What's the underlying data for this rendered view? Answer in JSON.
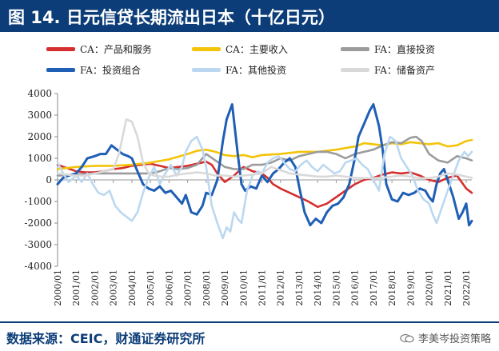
{
  "title": "图 14. 日元信贷长期流出日本（十亿日元）",
  "source": "数据来源：CEIC，财通证券研究所",
  "watermark": "李美岑投资策略",
  "chart_data": {
    "type": "line",
    "ylim": [
      -4000,
      4000
    ],
    "yticks": [
      "4000",
      "3000",
      "2000",
      "1000",
      "0",
      "-1000",
      "-2000",
      "-3000",
      "-4000"
    ],
    "categories": [
      "2000/01",
      "2001/01",
      "2002/01",
      "2003/01",
      "2004/01",
      "2005/01",
      "2006/01",
      "2007/01",
      "2008/01",
      "2009/01",
      "2010/01",
      "2011/01",
      "2012/01",
      "2013/01",
      "2014/01",
      "2015/01",
      "2016/01",
      "2017/01",
      "2018/01",
      "2019/01",
      "2020/01",
      "2021/01",
      "2022/01"
    ],
    "x_range": [
      2000.0,
      2022.3
    ],
    "series": [
      {
        "name": "CA：产品和服务",
        "color": "#d62f2f",
        "width": 2.6,
        "x": [
          2000.0,
          2000.5,
          2001.0,
          2001.5,
          2002.0,
          2002.5,
          2003.0,
          2003.5,
          2004.0,
          2004.5,
          2005.0,
          2005.5,
          2006.0,
          2006.5,
          2007.0,
          2007.5,
          2008.0,
          2008.3,
          2008.6,
          2009.0,
          2009.5,
          2010.0,
          2010.5,
          2011.0,
          2011.3,
          2011.6,
          2012.0,
          2012.5,
          2013.0,
          2013.5,
          2014.0,
          2014.5,
          2015.0,
          2015.5,
          2016.0,
          2016.5,
          2017.0,
          2017.5,
          2018.0,
          2018.5,
          2019.0,
          2019.5,
          2020.0,
          2020.5,
          2021.0,
          2021.5,
          2022.0,
          2022.3
        ],
        "values": [
          700,
          550,
          400,
          350,
          350,
          400,
          500,
          550,
          650,
          700,
          750,
          650,
          550,
          600,
          650,
          750,
          850,
          700,
          300,
          -100,
          200,
          600,
          400,
          300,
          100,
          -200,
          -400,
          -600,
          -800,
          -1000,
          -1250,
          -1100,
          -800,
          -500,
          -200,
          0,
          100,
          250,
          350,
          300,
          350,
          200,
          0,
          -100,
          100,
          200,
          -400,
          -600
        ]
      },
      {
        "name": "CA：主要收入",
        "color": "#f3c40a",
        "width": 2.6,
        "x": [
          2000.0,
          2001.0,
          2002.0,
          2003.0,
          2004.0,
          2005.0,
          2006.0,
          2007.0,
          2007.5,
          2008.0,
          2008.5,
          2009.0,
          2009.5,
          2010.0,
          2010.5,
          2011.0,
          2012.0,
          2013.0,
          2014.0,
          2015.0,
          2016.0,
          2016.5,
          2017.0,
          2017.5,
          2018.0,
          2018.5,
          2019.0,
          2019.5,
          2020.0,
          2020.5,
          2021.0,
          2021.5,
          2022.0,
          2022.3
        ],
        "values": [
          500,
          600,
          650,
          650,
          700,
          800,
          950,
          1200,
          1350,
          1400,
          1300,
          1150,
          1100,
          1150,
          1050,
          1150,
          1200,
          1300,
          1300,
          1400,
          1550,
          1700,
          1650,
          1600,
          1700,
          1650,
          1750,
          1700,
          1650,
          1700,
          1550,
          1600,
          1800,
          1850
        ]
      },
      {
        "name": "FA：直接投资",
        "color": "#9c9c9c",
        "width": 2.6,
        "x": [
          2000.0,
          2001.0,
          2002.0,
          2003.0,
          2004.0,
          2005.0,
          2005.5,
          2006.0,
          2006.5,
          2007.0,
          2007.5,
          2008.0,
          2008.5,
          2009.0,
          2009.5,
          2010.0,
          2010.5,
          2011.0,
          2011.5,
          2012.0,
          2012.5,
          2013.0,
          2013.5,
          2014.0,
          2014.5,
          2015.0,
          2015.5,
          2016.0,
          2016.5,
          2017.0,
          2017.5,
          2018.0,
          2018.5,
          2019.0,
          2019.3,
          2019.6,
          2020.0,
          2020.5,
          2021.0,
          2021.5,
          2022.0,
          2022.3
        ],
        "values": [
          200,
          250,
          300,
          300,
          300,
          300,
          400,
          550,
          500,
          550,
          700,
          1200,
          900,
          600,
          500,
          500,
          700,
          700,
          800,
          1000,
          900,
          1100,
          1200,
          1300,
          1300,
          1200,
          1000,
          1200,
          1300,
          1400,
          1600,
          1750,
          1700,
          1950,
          2000,
          1800,
          1200,
          900,
          800,
          1100,
          1000,
          900
        ]
      },
      {
        "name": "FA：投资组合",
        "color": "#1f5fb5",
        "width": 3,
        "x": [
          2000.0,
          2000.3,
          2000.6,
          2001.0,
          2001.3,
          2001.6,
          2002.0,
          2002.3,
          2002.6,
          2002.9,
          2003.2,
          2003.5,
          2003.8,
          2004.0,
          2004.3,
          2004.6,
          2004.9,
          2005.2,
          2005.5,
          2005.8,
          2006.1,
          2006.4,
          2006.7,
          2006.9,
          2007.2,
          2007.5,
          2007.8,
          2008.0,
          2008.3,
          2008.6,
          2008.9,
          2009.1,
          2009.4,
          2009.7,
          2009.9,
          2010.1,
          2010.4,
          2010.7,
          2011.0,
          2011.3,
          2011.6,
          2011.9,
          2012.2,
          2012.5,
          2012.8,
          2013.0,
          2013.3,
          2013.6,
          2013.9,
          2014.2,
          2014.5,
          2014.8,
          2015.1,
          2015.4,
          2015.7,
          2016.0,
          2016.2,
          2016.5,
          2016.8,
          2017.0,
          2017.3,
          2017.5,
          2017.7,
          2018.0,
          2018.3,
          2018.6,
          2018.9,
          2019.2,
          2019.5,
          2019.8,
          2020.0,
          2020.2,
          2020.4,
          2020.6,
          2020.8,
          2021.0,
          2021.3,
          2021.6,
          2021.8,
          2022.0,
          2022.15,
          2022.3
        ],
        "values": [
          -200,
          100,
          200,
          300,
          600,
          1000,
          1100,
          1200,
          1200,
          1600,
          1400,
          1200,
          1100,
          1000,
          400,
          -200,
          -400,
          -500,
          -300,
          -600,
          -500,
          -800,
          -1100,
          -700,
          -1500,
          -1600,
          -1200,
          -600,
          -700,
          0,
          1800,
          2800,
          3500,
          1200,
          -200,
          -500,
          -300,
          -400,
          200,
          -100,
          300,
          500,
          800,
          1000,
          600,
          -300,
          -1500,
          -2100,
          -1800,
          -2000,
          -1500,
          -1200,
          -1100,
          -800,
          -200,
          1000,
          2000,
          2600,
          3200,
          3500,
          2500,
          1400,
          -200,
          -900,
          -1000,
          -600,
          -700,
          -600,
          -400,
          -500,
          -800,
          -1000,
          -200,
          300,
          500,
          0,
          -800,
          -1800,
          -1500,
          -1100,
          -2100,
          -1900
        ]
      },
      {
        "name": "FA：其他投资",
        "color": "#bcd8f0",
        "width": 2.6,
        "x": [
          2000.0,
          2000.3,
          2000.6,
          2001.0,
          2001.3,
          2001.6,
          2001.9,
          2002.2,
          2002.5,
          2002.8,
          2003.1,
          2003.4,
          2003.7,
          2004.0,
          2004.3,
          2004.6,
          2004.9,
          2005.2,
          2005.5,
          2005.8,
          2006.1,
          2006.4,
          2006.7,
          2006.9,
          2007.2,
          2007.5,
          2007.8,
          2008.0,
          2008.3,
          2008.6,
          2008.9,
          2009.1,
          2009.3,
          2009.5,
          2009.7,
          2009.9,
          2010.2,
          2010.5,
          2010.8,
          2011.0,
          2011.3,
          2011.6,
          2011.9,
          2012.2,
          2012.5,
          2012.8,
          2013.1,
          2013.4,
          2013.7,
          2014.0,
          2014.3,
          2014.6,
          2014.9,
          2015.2,
          2015.5,
          2015.8,
          2016.1,
          2016.4,
          2016.7,
          2017.0,
          2017.3,
          2017.6,
          2017.9,
          2018.2,
          2018.5,
          2018.8,
          2019.1,
          2019.4,
          2019.7,
          2020.0,
          2020.2,
          2020.4,
          2020.6,
          2020.8,
          2021.0,
          2021.3,
          2021.6,
          2021.9,
          2022.1,
          2022.3
        ],
        "values": [
          800,
          300,
          -100,
          200,
          -100,
          300,
          -200,
          -600,
          -700,
          -500,
          -1200,
          -1500,
          -1700,
          -1900,
          -1500,
          -600,
          100,
          600,
          -200,
          300,
          700,
          200,
          600,
          1300,
          1800,
          2000,
          1400,
          600,
          -1200,
          -2000,
          -2700,
          -2200,
          -2400,
          -1500,
          -1800,
          -2000,
          -500,
          200,
          400,
          300,
          800,
          1000,
          1100,
          800,
          500,
          400,
          700,
          900,
          600,
          400,
          700,
          500,
          300,
          400,
          800,
          900,
          1000,
          700,
          500,
          0,
          -500,
          1200,
          2000,
          1800,
          1000,
          600,
          200,
          -500,
          -900,
          -1100,
          -1600,
          -2000,
          -1500,
          -1000,
          -500,
          200,
          900,
          1300,
          1100,
          1300
        ]
      },
      {
        "name": "FA：储备资产",
        "color": "#d9d9d9",
        "width": 2.6,
        "x": [
          2000.0,
          2000.5,
          2001.0,
          2001.5,
          2002.0,
          2002.5,
          2003.0,
          2003.3,
          2003.5,
          2003.7,
          2004.0,
          2004.3,
          2004.6,
          2004.9,
          2005.2,
          2005.6,
          2006.0,
          2006.5,
          2007.0,
          2007.5,
          2008.0,
          2008.5,
          2009.0,
          2009.5,
          2010.0,
          2010.5,
          2011.0,
          2011.5,
          2012.0,
          2012.5,
          2013.0,
          2013.5,
          2014.0,
          2014.5,
          2015.0,
          2015.5,
          2016.0,
          2016.5,
          2017.0,
          2017.5,
          2018.0,
          2018.5,
          2019.0,
          2019.5,
          2020.0,
          2020.5,
          2021.0,
          2021.5,
          2022.0,
          2022.3
        ],
        "values": [
          300,
          250,
          200,
          200,
          300,
          400,
          500,
          1200,
          2000,
          2800,
          2700,
          2000,
          800,
          300,
          200,
          150,
          150,
          250,
          300,
          350,
          300,
          200,
          200,
          150,
          200,
          250,
          300,
          600,
          450,
          300,
          250,
          200,
          150,
          150,
          200,
          150,
          100,
          80,
          80,
          100,
          150,
          200,
          150,
          80,
          80,
          150,
          300,
          250,
          150,
          100
        ]
      }
    ]
  }
}
